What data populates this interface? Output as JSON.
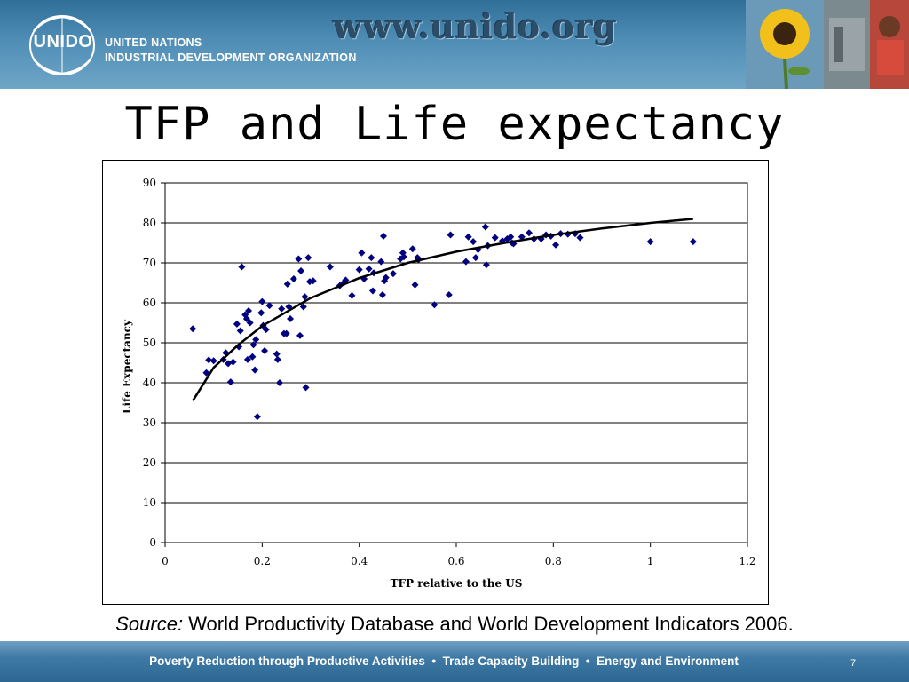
{
  "header": {
    "logo_text": "UNIDO",
    "org_name_line1": "UNITED NATIONS",
    "org_name_line2": "INDUSTRIAL DEVELOPMENT ORGANIZATION",
    "url": "www.unido.org"
  },
  "slide": {
    "title": "TFP and Life expectancy"
  },
  "source": {
    "label": "Source:",
    "text": " World Productivity Database and World Development Indicators 2006."
  },
  "footer": {
    "tagline": "Poverty Reduction through Productive Activities  •  Trade Capacity Building  •  Energy and Environment",
    "page_number": "7"
  },
  "chart_data": {
    "type": "scatter",
    "xlabel": "TFP relative to the US",
    "ylabel": "Life Expectancy",
    "xlim": [
      0,
      1.2
    ],
    "ylim": [
      0,
      90
    ],
    "x_ticks": [
      "0",
      "0.2",
      "0.4",
      "0.6",
      "0.8",
      "1",
      "1.2"
    ],
    "y_ticks": [
      "0",
      "10",
      "20",
      "30",
      "40",
      "50",
      "60",
      "70",
      "80",
      "90"
    ],
    "grid": "horizontal",
    "marker_color": "#000080",
    "trend_color": "#000000",
    "points": [
      [
        0.057,
        53.5
      ],
      [
        0.085,
        42.5
      ],
      [
        0.09,
        45.7
      ],
      [
        0.1,
        45.5
      ],
      [
        0.12,
        45.8
      ],
      [
        0.125,
        47.5
      ],
      [
        0.13,
        44.8
      ],
      [
        0.135,
        40.2
      ],
      [
        0.14,
        45.2
      ],
      [
        0.148,
        54.7
      ],
      [
        0.152,
        49.0
      ],
      [
        0.155,
        53.0
      ],
      [
        0.158,
        69.0
      ],
      [
        0.165,
        57.0
      ],
      [
        0.168,
        56.0
      ],
      [
        0.17,
        45.8
      ],
      [
        0.172,
        58.0
      ],
      [
        0.175,
        55.0
      ],
      [
        0.18,
        46.5
      ],
      [
        0.182,
        49.5
      ],
      [
        0.185,
        43.2
      ],
      [
        0.187,
        50.8
      ],
      [
        0.19,
        31.5
      ],
      [
        0.198,
        57.5
      ],
      [
        0.2,
        60.3
      ],
      [
        0.202,
        54.3
      ],
      [
        0.205,
        48.0
      ],
      [
        0.208,
        53.3
      ],
      [
        0.215,
        59.3
      ],
      [
        0.23,
        47.2
      ],
      [
        0.232,
        45.8
      ],
      [
        0.236,
        40.0
      ],
      [
        0.24,
        58.5
      ],
      [
        0.245,
        52.3
      ],
      [
        0.25,
        52.3
      ],
      [
        0.252,
        64.7
      ],
      [
        0.255,
        59.0
      ],
      [
        0.258,
        56.0
      ],
      [
        0.265,
        66.0
      ],
      [
        0.275,
        71.0
      ],
      [
        0.278,
        51.8
      ],
      [
        0.28,
        68.0
      ],
      [
        0.285,
        59.0
      ],
      [
        0.288,
        61.5
      ],
      [
        0.29,
        38.8
      ],
      [
        0.295,
        71.3
      ],
      [
        0.298,
        65.3
      ],
      [
        0.305,
        65.5
      ],
      [
        0.34,
        69.0
      ],
      [
        0.36,
        64.3
      ],
      [
        0.368,
        65.0
      ],
      [
        0.372,
        65.7
      ],
      [
        0.385,
        61.8
      ],
      [
        0.4,
        68.3
      ],
      [
        0.405,
        72.5
      ],
      [
        0.41,
        66.0
      ],
      [
        0.42,
        68.5
      ],
      [
        0.425,
        71.3
      ],
      [
        0.428,
        63.0
      ],
      [
        0.43,
        67.5
      ],
      [
        0.445,
        70.3
      ],
      [
        0.448,
        62.0
      ],
      [
        0.45,
        76.7
      ],
      [
        0.452,
        65.5
      ],
      [
        0.455,
        66.3
      ],
      [
        0.47,
        67.3
      ],
      [
        0.485,
        71.0
      ],
      [
        0.49,
        72.5
      ],
      [
        0.492,
        71.5
      ],
      [
        0.51,
        73.5
      ],
      [
        0.515,
        64.5
      ],
      [
        0.52,
        71.3
      ],
      [
        0.522,
        70.8
      ],
      [
        0.555,
        59.5
      ],
      [
        0.585,
        62.0
      ],
      [
        0.588,
        77.0
      ],
      [
        0.62,
        70.3
      ],
      [
        0.625,
        76.5
      ],
      [
        0.635,
        75.3
      ],
      [
        0.64,
        71.3
      ],
      [
        0.645,
        73.3
      ],
      [
        0.66,
        79.0
      ],
      [
        0.662,
        69.5
      ],
      [
        0.665,
        74.3
      ],
      [
        0.68,
        76.3
      ],
      [
        0.695,
        75.5
      ],
      [
        0.705,
        76.0
      ],
      [
        0.712,
        76.5
      ],
      [
        0.715,
        75.0
      ],
      [
        0.718,
        74.8
      ],
      [
        0.735,
        76.5
      ],
      [
        0.75,
        77.5
      ],
      [
        0.76,
        76.0
      ],
      [
        0.775,
        76.0
      ],
      [
        0.785,
        77.0
      ],
      [
        0.795,
        76.7
      ],
      [
        0.805,
        74.5
      ],
      [
        0.815,
        77.3
      ],
      [
        0.83,
        77.2
      ],
      [
        0.845,
        77.3
      ],
      [
        0.855,
        76.3
      ],
      [
        1.0,
        75.3
      ],
      [
        1.088,
        75.3
      ]
    ],
    "trend_line": {
      "x": [
        0.057,
        0.1,
        0.15,
        0.2,
        0.3,
        0.4,
        0.5,
        0.6,
        0.7,
        0.8,
        0.9,
        1.0,
        1.088
      ],
      "y": [
        35.5,
        43.8,
        49.4,
        54.2,
        61.2,
        66.2,
        70.0,
        72.8,
        75.0,
        77.0,
        78.6,
        80.0,
        81.0
      ]
    }
  }
}
